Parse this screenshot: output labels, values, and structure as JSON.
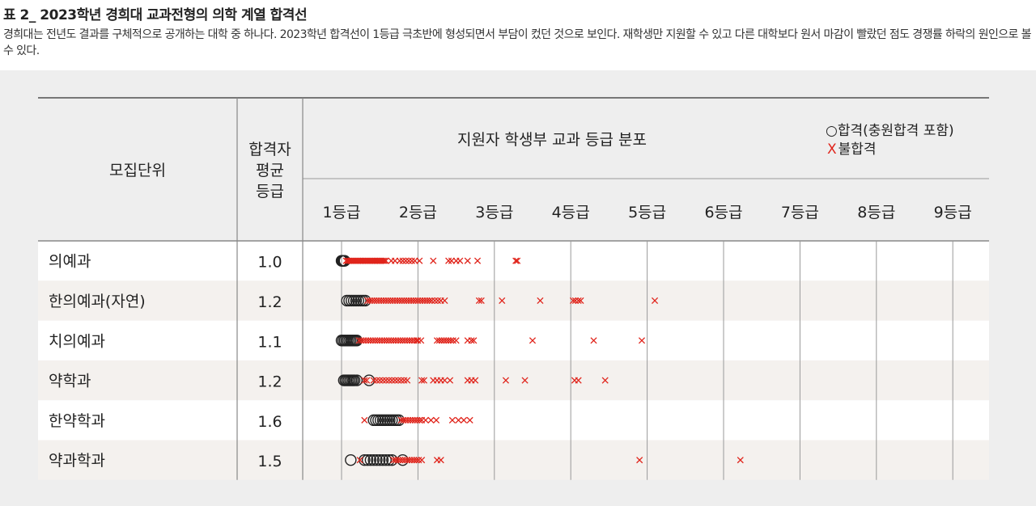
{
  "header": {
    "title": "표 2_ 2023학년 경희대 교과전형의 의학 계열 합격선",
    "subtitle": "경희대는 전년도 결과를 구체적으로 공개하는 대학 중 하나다. 2023학년 합격선이 1등급 극초반에 형성되면서 부담이 컸던 것으로 보인다. 재학생만 지원할 수 있고 다른 대학보다 원서 마감이 빨랐던 점도 경쟁률 하락의 원인으로 볼 수 있다."
  },
  "colors": {
    "panel_bg": "#eeeeee",
    "stripe": "#f4f1ee",
    "grid": "#999999",
    "accept": "#222222",
    "reject": "#e0241b"
  },
  "chart_data": {
    "type": "scatter",
    "columns": {
      "unit": "모집단위",
      "avg": "합격자\n평균\n등급",
      "dist": "지원자 학생부 교과 등급 분포"
    },
    "legend": {
      "accept_label": "합격(충원합격 포함)",
      "reject_label": "불합격",
      "accept_marker": "○",
      "reject_marker": "X",
      "position": "top-right"
    },
    "x_ticks": [
      "1등급",
      "2등급",
      "3등급",
      "4등급",
      "5등급",
      "6등급",
      "7등급",
      "8등급",
      "9등급"
    ],
    "xlim": [
      1,
      9
    ],
    "rows": [
      {
        "name": "의예과",
        "avg": "1.0",
        "accepted": [
          1.0,
          1.01,
          1.02,
          1.03,
          1.04
        ],
        "rejected": [
          1.06,
          1.08,
          1.1,
          1.12,
          1.14,
          1.16,
          1.18,
          1.2,
          1.22,
          1.24,
          1.26,
          1.28,
          1.3,
          1.32,
          1.34,
          1.36,
          1.38,
          1.4,
          1.42,
          1.44,
          1.46,
          1.48,
          1.5,
          1.52,
          1.54,
          1.56,
          1.58,
          1.65,
          1.7,
          1.76,
          1.8,
          1.84,
          1.88,
          1.92,
          1.96,
          2.02,
          2.2,
          2.4,
          2.44,
          2.5,
          2.55,
          2.65,
          2.78,
          3.28,
          3.3
        ]
      },
      {
        "name": "한의예과(자연)",
        "avg": "1.2",
        "accepted": [
          1.07,
          1.1,
          1.13,
          1.16,
          1.19,
          1.22,
          1.25,
          1.28,
          1.31
        ],
        "rejected": [
          1.34,
          1.37,
          1.4,
          1.43,
          1.46,
          1.49,
          1.52,
          1.55,
          1.58,
          1.61,
          1.64,
          1.67,
          1.7,
          1.73,
          1.76,
          1.79,
          1.82,
          1.85,
          1.88,
          1.91,
          1.94,
          1.97,
          2.0,
          2.03,
          2.06,
          2.09,
          2.12,
          2.15,
          2.18,
          2.22,
          2.26,
          2.3,
          2.35,
          2.8,
          2.83,
          3.1,
          3.6,
          4.03,
          4.06,
          4.1,
          4.13,
          5.1
        ]
      },
      {
        "name": "치의예과",
        "avg": "1.1",
        "accepted": [
          1.0,
          1.02,
          1.04,
          1.06,
          1.08,
          1.1,
          1.12,
          1.14,
          1.16,
          1.18,
          1.2
        ],
        "rejected": [
          1.23,
          1.26,
          1.29,
          1.32,
          1.35,
          1.38,
          1.41,
          1.44,
          1.47,
          1.5,
          1.53,
          1.56,
          1.59,
          1.62,
          1.65,
          1.68,
          1.71,
          1.74,
          1.77,
          1.8,
          1.83,
          1.86,
          1.89,
          1.92,
          1.95,
          1.98,
          2.0,
          2.04,
          2.25,
          2.28,
          2.31,
          2.34,
          2.37,
          2.4,
          2.43,
          2.46,
          2.5,
          2.65,
          2.7,
          2.73,
          3.5,
          4.3,
          4.93
        ]
      },
      {
        "name": "약학과",
        "avg": "1.2",
        "accepted": [
          1.03,
          1.05,
          1.07,
          1.09,
          1.11,
          1.13,
          1.15,
          1.17,
          1.2,
          1.36
        ],
        "rejected": [
          1.3,
          1.33,
          1.42,
          1.46,
          1.5,
          1.54,
          1.58,
          1.62,
          1.66,
          1.7,
          1.74,
          1.78,
          1.82,
          1.86,
          2.05,
          2.08,
          2.2,
          2.25,
          2.3,
          2.35,
          2.42,
          2.65,
          2.7,
          2.75,
          3.15,
          3.4,
          4.05,
          4.1,
          4.45
        ]
      },
      {
        "name": "한약학과",
        "avg": "1.6",
        "accepted": [
          1.42,
          1.45,
          1.48,
          1.51,
          1.54,
          1.57,
          1.6,
          1.63,
          1.66,
          1.69,
          1.72,
          1.75
        ],
        "rejected": [
          1.3,
          1.78,
          1.81,
          1.84,
          1.87,
          1.9,
          1.93,
          1.96,
          1.99,
          2.02,
          2.05,
          2.1,
          2.17,
          2.24,
          2.45,
          2.53,
          2.6,
          2.68
        ]
      },
      {
        "name": "약과학과",
        "avg": "1.5",
        "accepted": [
          1.12,
          1.3,
          1.34,
          1.38,
          1.42,
          1.46,
          1.5,
          1.54,
          1.58,
          1.62,
          1.66,
          1.8
        ],
        "rejected": [
          1.24,
          1.68,
          1.71,
          1.74,
          1.77,
          1.8,
          1.83,
          1.86,
          1.89,
          1.92,
          1.95,
          1.98,
          2.01,
          2.05,
          2.25,
          2.3,
          4.9,
          6.22
        ]
      }
    ]
  }
}
